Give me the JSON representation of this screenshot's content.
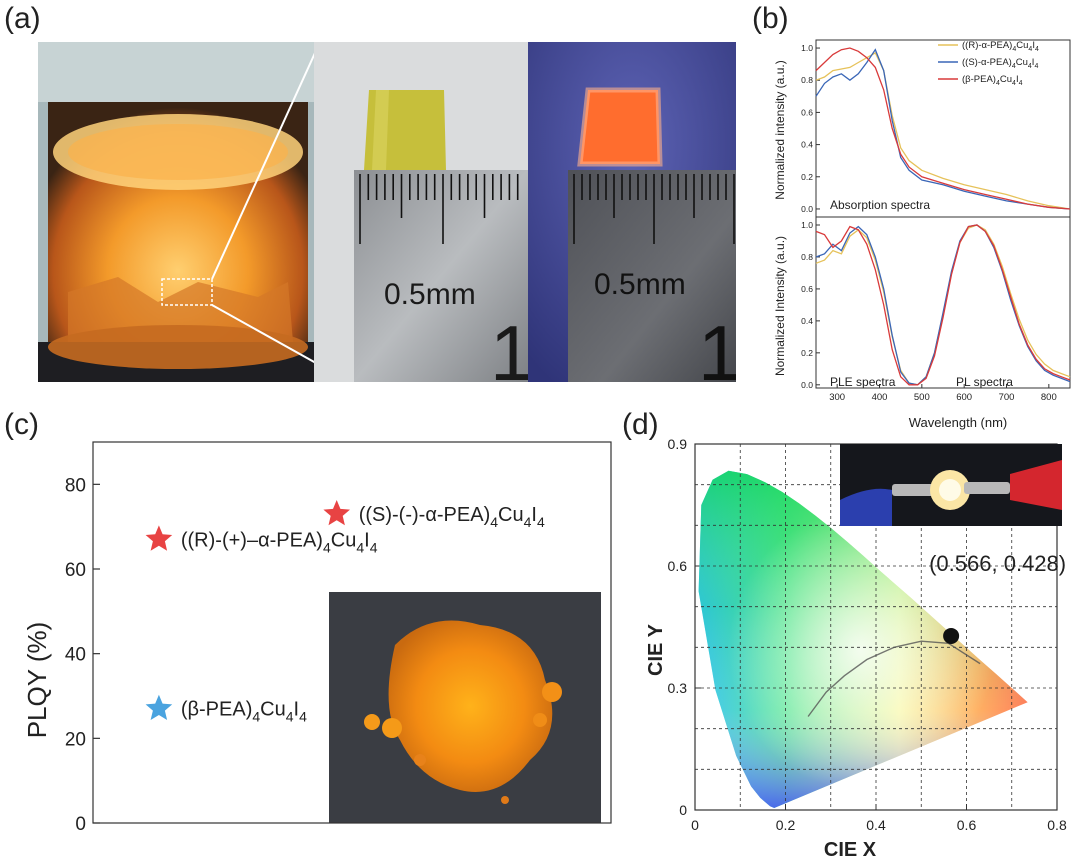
{
  "panel_labels": {
    "a": "(a)",
    "b": "(b)",
    "c": "(c)",
    "d": "(d)"
  },
  "panel_a": {
    "scale_label_1": "0.5mm",
    "scale_label_2": "0.5mm",
    "ruler_digit_1": "1",
    "ruler_digit_2": "1"
  },
  "chart_data": [
    {
      "id": "b-top",
      "type": "line",
      "annotation": "Absorption spectra",
      "ylabel": "Normalized intensity (a.u.)",
      "xlim": [
        250,
        850
      ],
      "ylim": [
        -0.05,
        1.05
      ],
      "yticks": [
        "0.0",
        "0.2",
        "0.4",
        "0.6",
        "0.8",
        "1.0"
      ],
      "legend_placement": "top-right",
      "series": [
        {
          "name": "((R)-α-PEA)4Cu4I4",
          "color": "#e6c25a",
          "x": [
            250,
            270,
            290,
            310,
            330,
            350,
            370,
            390,
            410,
            430,
            450,
            470,
            500,
            550,
            600,
            650,
            700,
            750,
            800,
            850
          ],
          "y": [
            0.8,
            0.82,
            0.86,
            0.87,
            0.88,
            0.91,
            0.94,
            0.97,
            0.86,
            0.58,
            0.38,
            0.3,
            0.24,
            0.19,
            0.15,
            0.12,
            0.09,
            0.05,
            0.02,
            0.0
          ]
        },
        {
          "name": "((S)-α-PEA)4Cu4I4",
          "color": "#3a66b7",
          "x": [
            250,
            270,
            290,
            310,
            330,
            350,
            370,
            390,
            410,
            430,
            450,
            470,
            500,
            550,
            600,
            650,
            700,
            750,
            800,
            850
          ],
          "y": [
            0.7,
            0.78,
            0.82,
            0.84,
            0.8,
            0.84,
            0.91,
            0.99,
            0.86,
            0.55,
            0.32,
            0.24,
            0.18,
            0.15,
            0.11,
            0.08,
            0.05,
            0.03,
            0.01,
            0.0
          ]
        },
        {
          "name": "(β-PEA)4Cu4I4",
          "color": "#d93a3a",
          "x": [
            250,
            270,
            290,
            310,
            330,
            350,
            370,
            390,
            410,
            430,
            450,
            470,
            500,
            550,
            600,
            650,
            700,
            750,
            800,
            850
          ],
          "y": [
            0.86,
            0.91,
            0.96,
            0.99,
            1.0,
            0.98,
            0.94,
            0.88,
            0.74,
            0.5,
            0.34,
            0.26,
            0.2,
            0.16,
            0.12,
            0.09,
            0.06,
            0.03,
            0.01,
            0.0
          ]
        }
      ]
    },
    {
      "id": "b-bottom",
      "type": "line",
      "annotations": [
        "PLE spectra",
        "PL spectra"
      ],
      "xlabel": "Wavelength (nm)",
      "ylabel": "Normalized Intensity (a.u.)",
      "xlim": [
        250,
        850
      ],
      "ylim": [
        -0.02,
        1.05
      ],
      "xticks": [
        300,
        400,
        500,
        600,
        700,
        800
      ],
      "yticks": [
        "0.0",
        "0.2",
        "0.4",
        "0.6",
        "0.8",
        "1.0"
      ],
      "series": [
        {
          "name": "((R)-α-PEA)4Cu4I4",
          "color": "#e6c25a",
          "x": [
            250,
            270,
            290,
            310,
            330,
            350,
            370,
            390,
            410,
            430,
            450,
            470,
            490,
            510,
            530,
            550,
            570,
            590,
            610,
            630,
            650,
            670,
            690,
            710,
            730,
            750,
            770,
            790,
            810,
            830,
            850
          ],
          "y": [
            0.76,
            0.78,
            0.84,
            0.82,
            0.93,
            0.97,
            0.92,
            0.78,
            0.58,
            0.3,
            0.09,
            0.01,
            0.0,
            0.05,
            0.2,
            0.44,
            0.7,
            0.89,
            0.98,
            1.0,
            0.97,
            0.88,
            0.74,
            0.57,
            0.41,
            0.28,
            0.19,
            0.13,
            0.09,
            0.07,
            0.05
          ]
        },
        {
          "name": "((S)-α-PEA)4Cu4I4",
          "color": "#3a66b7",
          "x": [
            250,
            270,
            290,
            310,
            330,
            350,
            370,
            390,
            410,
            430,
            450,
            470,
            490,
            510,
            530,
            550,
            570,
            590,
            610,
            630,
            650,
            670,
            690,
            710,
            730,
            750,
            770,
            790,
            810,
            830,
            850
          ],
          "y": [
            0.8,
            0.82,
            0.88,
            0.84,
            0.95,
            0.99,
            0.94,
            0.8,
            0.6,
            0.31,
            0.08,
            0.01,
            0.0,
            0.05,
            0.2,
            0.45,
            0.71,
            0.9,
            0.99,
            1.0,
            0.96,
            0.86,
            0.71,
            0.53,
            0.37,
            0.24,
            0.15,
            0.09,
            0.06,
            0.04,
            0.02
          ]
        },
        {
          "name": "(β-PEA)4Cu4I4",
          "color": "#d93a3a",
          "x": [
            250,
            270,
            290,
            310,
            330,
            350,
            370,
            390,
            410,
            430,
            450,
            470,
            490,
            510,
            530,
            550,
            570,
            590,
            610,
            630,
            650,
            670,
            690,
            710,
            730,
            750,
            770,
            790,
            810,
            830,
            850
          ],
          "y": [
            0.96,
            0.94,
            0.86,
            0.9,
            0.99,
            0.97,
            0.88,
            0.72,
            0.5,
            0.22,
            0.05,
            0.0,
            0.0,
            0.04,
            0.18,
            0.42,
            0.69,
            0.89,
            0.99,
            1.0,
            0.96,
            0.87,
            0.72,
            0.55,
            0.38,
            0.25,
            0.16,
            0.1,
            0.07,
            0.05,
            0.03
          ]
        }
      ]
    },
    {
      "id": "c",
      "type": "scatter",
      "ylabel": "PLQY (%)",
      "ylim": [
        0,
        90
      ],
      "yticks": [
        0,
        20,
        40,
        60,
        80
      ],
      "xlim": [
        0,
        3
      ],
      "series": [
        {
          "name": "((R)-(+)–α-PEA)4Cu4I4",
          "color": "#e84343",
          "x": 0.7,
          "y": 67
        },
        {
          "name": "((S)-(-)-α-PEA)4Cu4I4",
          "color": "#e84343",
          "x": 1.73,
          "y": 73
        },
        {
          "name": "(β-PEA)4Cu4I4",
          "color": "#4aa3df",
          "x": 0.7,
          "y": 27
        }
      ]
    },
    {
      "id": "d",
      "type": "scatter",
      "xlabel": "CIE X",
      "ylabel": "CIE Y",
      "xlim": [
        0,
        0.8
      ],
      "ylim": [
        0,
        0.9
      ],
      "xticks": [
        "0",
        "0.2",
        "0.4",
        "0.6",
        "0.8"
      ],
      "yticks": [
        "0",
        "0.3",
        "0.6",
        "0.9"
      ],
      "grid": true,
      "point": {
        "x": 0.566,
        "y": 0.428,
        "label": "(0.566, 0.428)",
        "color": "#111111"
      }
    }
  ],
  "legend_b": [
    {
      "pre": "((R)-α-PEA)",
      "s1": "4",
      "mid": "Cu",
      "s2": "4",
      "el": "I",
      "s3": "4",
      "color": "#e6c25a"
    },
    {
      "pre": "((S)-α-PEA)",
      "s1": "4",
      "mid": "Cu",
      "s2": "4",
      "el": "I",
      "s3": "4",
      "color": "#3a66b7"
    },
    {
      "pre": "(β-PEA)",
      "s1": "4",
      "mid": "Cu",
      "s2": "4",
      "el": "I",
      "s3": "4",
      "color": "#d93a3a"
    }
  ],
  "labels_c": {
    "r": {
      "pre": "((R)-(+)–α-PEA)",
      "s1": "4",
      "mid": "Cu",
      "s2": "4",
      "el": "I",
      "s3": "4"
    },
    "s": {
      "pre": "((S)-(-)-α-PEA)",
      "s1": "4",
      "mid": "Cu",
      "s2": "4",
      "el": "I",
      "s3": "4"
    },
    "b": {
      "pre": "(β-PEA)",
      "s1": "4",
      "mid": "Cu",
      "s2": "4",
      "el": "I",
      "s3": "4"
    }
  }
}
